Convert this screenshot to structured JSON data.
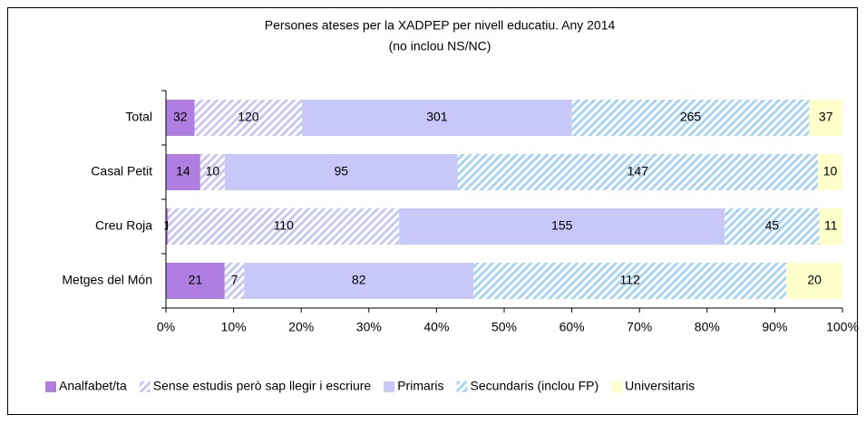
{
  "chart_data": {
    "type": "bar",
    "orientation": "horizontal",
    "stacked": "percent",
    "title": "Persones ateses per la XADPEP per nivell educatiu. Any 2014",
    "subtitle": "(no inclou NS/NC)",
    "categories": [
      "Total",
      "Casal Petit",
      "Creu Roja",
      "Metges del Món"
    ],
    "series": [
      {
        "name": "Analfabet/ta",
        "color": "#b07ee0",
        "hatch": false,
        "values": [
          32,
          14,
          1,
          21
        ]
      },
      {
        "name": "Sense estudis però sap llegir i escriure",
        "color": "#c8c8f0",
        "hatch": true,
        "values": [
          120,
          10,
          110,
          7
        ]
      },
      {
        "name": "Primaris",
        "color": "#c8c8f8",
        "hatch": false,
        "values": [
          301,
          95,
          155,
          82
        ]
      },
      {
        "name": "Secundaris (inclou FP)",
        "color": "#a8d4f0",
        "hatch": true,
        "values": [
          265,
          147,
          45,
          112
        ]
      },
      {
        "name": "Universitaris",
        "color": "#ffffcc",
        "hatch": false,
        "values": [
          37,
          10,
          11,
          20
        ]
      }
    ],
    "xlim": [
      0,
      100
    ],
    "xticks": [
      {
        "value": 0,
        "label": "0%"
      },
      {
        "value": 10,
        "label": "10%"
      },
      {
        "value": 20,
        "label": "20%"
      },
      {
        "value": 30,
        "label": "30%"
      },
      {
        "value": 40,
        "label": "40%"
      },
      {
        "value": 50,
        "label": "50%"
      },
      {
        "value": 60,
        "label": "60%"
      },
      {
        "value": 70,
        "label": "70%"
      },
      {
        "value": 80,
        "label": "80%"
      },
      {
        "value": 90,
        "label": "90%"
      },
      {
        "value": 100,
        "label": "100%"
      }
    ],
    "grid": false,
    "legend": "bottom"
  }
}
